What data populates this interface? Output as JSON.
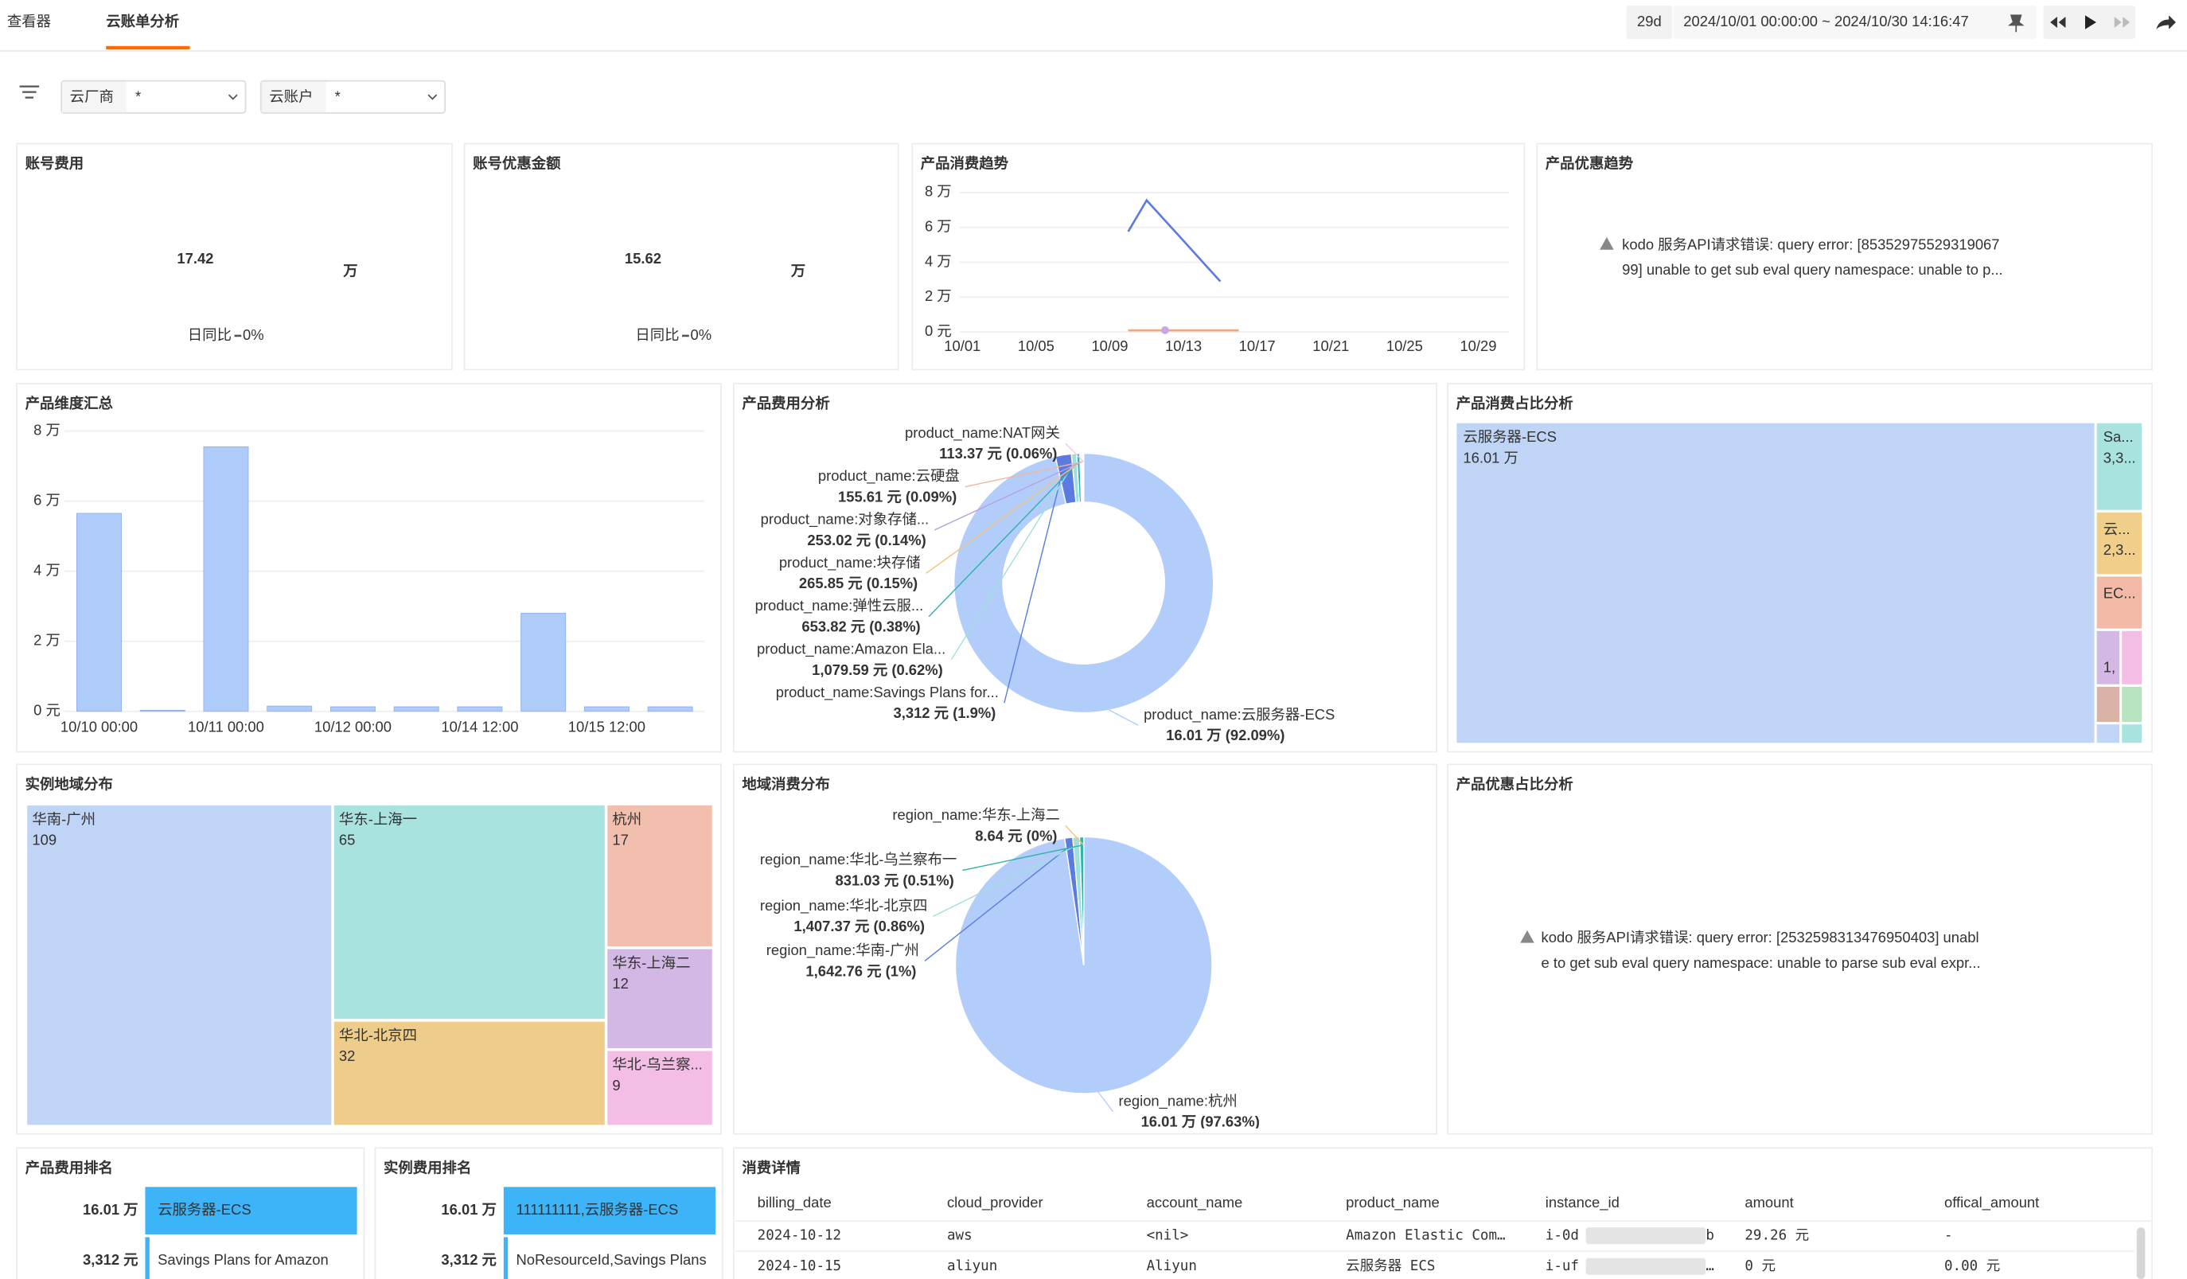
{
  "header": {
    "tabs": [
      "查看器",
      "云账单分析"
    ],
    "duration": "29d",
    "time_range": "2024/10/01 00:00:00 ~ 2024/10/30 14:16:47"
  },
  "filters": [
    {
      "label": "云厂商",
      "value": "*"
    },
    {
      "label": "云账户",
      "value": "*"
    }
  ],
  "kpis": [
    {
      "title": "账号费用",
      "value": "17.42",
      "unit": "万",
      "compare_label": "日同比",
      "compare": "0%"
    },
    {
      "title": "账号优惠金额",
      "value": "15.62",
      "unit": "万",
      "compare_label": "日同比",
      "compare": "0%"
    }
  ],
  "trend": {
    "title": "产品消费趋势",
    "type": "line",
    "categories": [
      "10/01",
      null,
      null,
      null,
      "10/05",
      null,
      null,
      null,
      "10/09",
      null,
      null,
      null,
      "10/13",
      null,
      null,
      null,
      "10/17",
      null,
      null,
      null,
      "10/21",
      null,
      null,
      null,
      "10/25",
      null,
      null,
      null,
      "10/29",
      null
    ],
    "ylim": [
      0,
      80000
    ],
    "yticks": [
      {
        "value": 0,
        "label": "0 元"
      },
      {
        "value": 20000,
        "label": "2 万"
      },
      {
        "value": 40000,
        "label": "4 万"
      },
      {
        "value": 60000,
        "label": "6 万"
      },
      {
        "value": 80000,
        "label": "8 万"
      }
    ],
    "grid": true,
    "series": [
      {
        "color": "#5b7be0",
        "values": [
          null,
          null,
          null,
          null,
          null,
          null,
          null,
          null,
          null,
          57600,
          75500,
          63900,
          52300,
          40600,
          29000,
          null,
          null,
          null,
          null,
          null,
          null,
          null,
          null,
          null,
          null,
          null,
          null,
          null,
          null,
          null
        ]
      },
      {
        "color": "#f0a878",
        "values": [
          null,
          null,
          null,
          null,
          null,
          null,
          null,
          null,
          null,
          900,
          900,
          900,
          900,
          900,
          900,
          900,
          null,
          null,
          null,
          null,
          null,
          null,
          null,
          null,
          null,
          null,
          null,
          null,
          null,
          null
        ]
      },
      {
        "color": "#c9a6e6",
        "values": [
          null,
          null,
          null,
          null,
          null,
          null,
          null,
          null,
          null,
          null,
          null,
          1000,
          null,
          null,
          null,
          null,
          null,
          null,
          null,
          null,
          null,
          null,
          null,
          null,
          null,
          null,
          null,
          null,
          null,
          null
        ]
      }
    ]
  },
  "promo_trend": {
    "title": "产品优惠趋势",
    "message_lines": [
      "kodo 服务API请求错误: query error: [85352975529319067",
      "99] unable to get sub eval query namespace: unable to p..."
    ]
  },
  "product_bar": {
    "title": "产品维度汇总",
    "type": "bar",
    "categories": [
      "10/10 00:00",
      null,
      "10/11 00:00",
      null,
      "10/12 00:00",
      null,
      "10/14 12:00",
      null,
      "10/15 12:00",
      null
    ],
    "values": [
      56500,
      300,
      75500,
      1500,
      1300,
      1300,
      1300,
      28000,
      1300,
      1300
    ],
    "color": "#aecbfa",
    "ylim": [
      0,
      80000
    ],
    "yticks": [
      {
        "value": 0,
        "label": "0 元"
      },
      {
        "value": 20000,
        "label": "2 万"
      },
      {
        "value": 40000,
        "label": "4 万"
      },
      {
        "value": 60000,
        "label": "6 万"
      },
      {
        "value": 80000,
        "label": "8 万"
      }
    ],
    "grid": true
  },
  "product_cost": {
    "title": "产品费用分析",
    "type": "donut",
    "slices": [
      {
        "label": "product_name:云服务器-ECS",
        "value": 160100,
        "value_label": "16.01 万 (92.09%)",
        "color": "#b3cdfa"
      },
      {
        "label": "product_name:Savings Plans for...",
        "value": 3312,
        "value_label": "3,312 元 (1.9%)",
        "color": "#5b7be0"
      },
      {
        "label": "product_name:Amazon Ela...",
        "value": 1079.59,
        "value_label": "1,079.59 元 (0.62%)",
        "color": "#9fe0dc"
      },
      {
        "label": "product_name:弹性云服...",
        "value": 653.82,
        "value_label": "653.82 元 (0.38%)",
        "color": "#2fb3a6"
      },
      {
        "label": "product_name:块存储",
        "value": 265.85,
        "value_label": "265.85 元 (0.15%)",
        "color": "#f1c27d"
      },
      {
        "label": "product_name:对象存储...",
        "value": 253.02,
        "value_label": "253.02 元 (0.14%)",
        "color": "#b9a2de"
      },
      {
        "label": "product_name:云硬盘",
        "value": 155.61,
        "value_label": "155.61 元 (0.09%)",
        "color": "#f0b5a0"
      },
      {
        "label": "product_name:NAT网关",
        "value": 113.37,
        "value_label": "113.37 元 (0.06%)",
        "color": "#f3c9e8"
      }
    ]
  },
  "product_share": {
    "title": "产品消费占比分析",
    "items": [
      {
        "label": "云服务器-ECS",
        "value_label": "16.01 万"
      },
      {
        "label": "Sa...",
        "value_label": "3,3..."
      },
      {
        "label": "云...",
        "value_label": "2,3..."
      },
      {
        "label": "EC..."
      },
      {
        "value_label": "1,"
      }
    ]
  },
  "instance_region": {
    "title": "实例地域分布",
    "items": [
      {
        "label": "华南-广州",
        "value": 109
      },
      {
        "label": "华东-上海一",
        "value": 65
      },
      {
        "label": "华北-北京四",
        "value": 32
      },
      {
        "label": "杭州",
        "value": 17
      },
      {
        "label": "华东-上海二",
        "value": 12
      },
      {
        "label": "华北-乌兰察...",
        "value": 9
      }
    ]
  },
  "region_cost": {
    "title": "地域消费分布",
    "type": "pie",
    "slices": [
      {
        "label": "region_name:杭州",
        "value": 160100,
        "value_label": "16.01 万 (97.63%)",
        "color": "#b3cdfa"
      },
      {
        "label": "region_name:华南-广州",
        "value": 1642.76,
        "value_label": "1,642.76 元 (1%)",
        "color": "#5b7be0"
      },
      {
        "label": "region_name:华北-北京四",
        "value": 1407.37,
        "value_label": "1,407.37 元 (0.86%)",
        "color": "#9fe0dc"
      },
      {
        "label": "region_name:华北-乌兰察布一",
        "value": 831.03,
        "value_label": "831.03 元 (0.51%)",
        "color": "#2fb3a6"
      },
      {
        "label": "region_name:华东-上海二",
        "value": 8.64,
        "value_label": "8.64 元 (0%)",
        "color": "#f1c27d"
      }
    ]
  },
  "promo_share": {
    "title": "产品优惠占比分析",
    "message_lines": [
      "kodo 服务API请求错误: query error: [2532598313476950403] unabl",
      "e to get sub eval query namespace: unable to parse sub eval expr..."
    ]
  },
  "product_rank": {
    "title": "产品费用排名",
    "rows": [
      {
        "value": 160100,
        "value_label": "16.01 万",
        "name": "云服务器-ECS"
      },
      {
        "value": 3312,
        "value_label": "3,312 元",
        "name": "Savings Plans for Amazon"
      }
    ]
  },
  "instance_rank": {
    "title": "实例费用排名",
    "rows": [
      {
        "value": 160100,
        "value_label": "16.01 万",
        "name": "111111111,云服务器-ECS"
      },
      {
        "value": 3312,
        "value_label": "3,312 元",
        "name": "NoResourceId,Savings Plans"
      }
    ]
  },
  "details": {
    "title": "消费详情",
    "columns": [
      "billing_date",
      "cloud_provider",
      "account_name",
      "product_name",
      "instance_id",
      "amount",
      "offical_amount"
    ],
    "rows": [
      [
        "2024-10-12",
        "aws",
        "<nil>",
        "Amazon Elastic Com…",
        {
          "prefix": "i-0d",
          "suffix": "b"
        },
        "29.26 元",
        "-"
      ],
      [
        "2024-10-15",
        "aliyun",
        "Aliyun",
        "云服务器 ECS",
        {
          "prefix": "i-uf",
          "suffix": "…"
        },
        "0 元",
        "0.00 元"
      ]
    ]
  }
}
